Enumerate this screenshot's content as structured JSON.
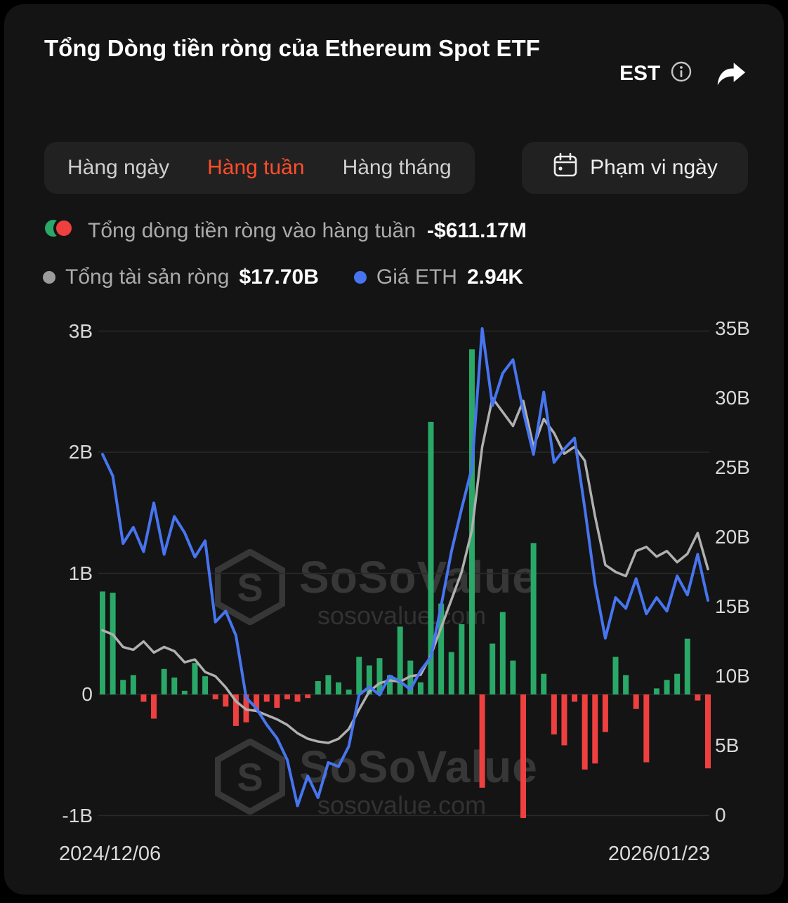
{
  "header": {
    "title": "Tổng Dòng tiền ròng của Ethereum Spot ETF",
    "timezone": "EST"
  },
  "tabs": {
    "items": [
      {
        "label": "Hàng ngày",
        "active": false
      },
      {
        "label": "Hàng tuần",
        "active": true
      },
      {
        "label": "Hàng tháng",
        "active": false
      }
    ],
    "active_color": "#ff4e2b",
    "date_range_label": "Phạm vi ngày"
  },
  "legend": {
    "flow": {
      "label": "Tổng dòng tiền ròng vào hàng tuần",
      "value": "-$611.17M"
    },
    "assets": {
      "label": "Tổng tài sản ròng",
      "value": "$17.70B",
      "color": "#9b9b9b"
    },
    "price": {
      "label": "Giá ETH",
      "value": "2.94K",
      "color": "#4775f0"
    }
  },
  "watermark": {
    "brand": "SoSoValue",
    "domain": "sosovalue.com"
  },
  "chart_data": {
    "type": "bar",
    "title": "Tổng Dòng tiền ròng của Ethereum Spot ETF (hàng tuần)",
    "x_range_labels": [
      "2024/12/06",
      "2026/01/23"
    ],
    "grid": true,
    "left_axis": {
      "unit": "USD (B)",
      "range": [
        -1,
        3
      ],
      "ticks": [
        {
          "label": "3B",
          "value": 3
        },
        {
          "label": "2B",
          "value": 2
        },
        {
          "label": "1B",
          "value": 1
        },
        {
          "label": "0",
          "value": 0
        },
        {
          "label": "-1B",
          "value": -1
        }
      ]
    },
    "right_axis": {
      "unit": "USD (B)",
      "range": [
        0,
        35
      ],
      "ticks": [
        {
          "label": "35B",
          "value": 35
        },
        {
          "label": "30B",
          "value": 30
        },
        {
          "label": "25B",
          "value": 25
        },
        {
          "label": "20B",
          "value": 20
        },
        {
          "label": "15B",
          "value": 15
        },
        {
          "label": "10B",
          "value": 10
        },
        {
          "label": "5B",
          "value": 5
        },
        {
          "label": "0",
          "value": 0
        }
      ]
    },
    "series": {
      "flows": {
        "name": "Tổng dòng tiền ròng vào hàng tuần",
        "type": "bar",
        "axis": "left",
        "positive_color": "#2aa868",
        "negative_color": "#ef4040",
        "latest": "-$611.17M",
        "values": [
          0.85,
          0.84,
          0.12,
          0.16,
          -0.06,
          -0.2,
          0.21,
          0.14,
          0.03,
          0.26,
          0.15,
          -0.04,
          -0.1,
          -0.26,
          -0.23,
          -0.13,
          -0.06,
          -0.11,
          -0.04,
          -0.06,
          -0.03,
          0.11,
          0.16,
          0.1,
          0.04,
          0.31,
          0.24,
          0.3,
          0.16,
          0.56,
          0.28,
          0.1,
          2.25,
          0.75,
          0.35,
          0.58,
          2.85,
          -0.77,
          0.42,
          0.68,
          0.28,
          -1.02,
          1.25,
          0.17,
          -0.33,
          -0.42,
          -0.06,
          -0.62,
          -0.57,
          -0.31,
          0.31,
          0.16,
          -0.12,
          -0.56,
          0.05,
          0.12,
          0.17,
          0.46,
          -0.05,
          -0.61
        ]
      },
      "assets": {
        "name": "Tổng tài sản ròng",
        "type": "line",
        "axis": "right",
        "color": "#b0b0b0",
        "latest": "$17.70B",
        "values": [
          13.3,
          13.0,
          12.1,
          11.9,
          12.5,
          11.7,
          12.1,
          11.8,
          11.0,
          11.2,
          10.3,
          10.0,
          9.2,
          8.2,
          7.6,
          7.5,
          7.2,
          6.9,
          6.5,
          5.9,
          5.5,
          5.3,
          5.2,
          5.5,
          6.2,
          7.6,
          8.9,
          9.5,
          9.7,
          9.6,
          10.0,
          10.1,
          11.5,
          13.5,
          15.5,
          17.5,
          20.5,
          26.5,
          30.0,
          29.0,
          28.0,
          29.8,
          26.5,
          28.5,
          27.5,
          26.0,
          26.5,
          25.5,
          21.5,
          18.0,
          17.5,
          17.2,
          19.0,
          19.3,
          18.6,
          19.0,
          18.2,
          18.8,
          20.3,
          17.7
        ]
      },
      "price": {
        "name": "Giá ETH",
        "type": "line",
        "axis": "hidden",
        "color": "#4775f0",
        "domain": [
          1.35,
          4.95
        ],
        "latest": "2.94K",
        "values": [
          4.02,
          3.86,
          3.36,
          3.48,
          3.3,
          3.66,
          3.28,
          3.56,
          3.44,
          3.26,
          3.38,
          2.78,
          2.86,
          2.68,
          2.22,
          2.14,
          2.02,
          1.92,
          1.76,
          1.42,
          1.64,
          1.48,
          1.74,
          1.71,
          1.86,
          2.24,
          2.3,
          2.24,
          2.38,
          2.34,
          2.28,
          2.42,
          2.52,
          2.9,
          3.3,
          3.62,
          3.92,
          4.95,
          4.38,
          4.62,
          4.72,
          4.34,
          4.02,
          4.48,
          3.96,
          4.06,
          4.14,
          3.62,
          3.06,
          2.66,
          2.96,
          2.88,
          3.1,
          2.84,
          2.96,
          2.86,
          3.12,
          2.98,
          3.28,
          2.94
        ]
      }
    }
  }
}
